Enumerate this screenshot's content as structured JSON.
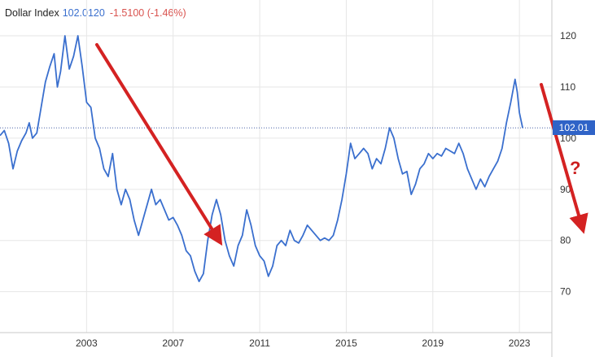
{
  "header": {
    "name": "Dollar Index",
    "last": "102.0120",
    "change": "-1.5100 (-1.46%)"
  },
  "colors": {
    "line": "#3a6fce",
    "arrow": "#d42222",
    "change": "#d9534f",
    "grid": "#e6e6e6"
  },
  "chart_data": {
    "type": "line",
    "title": "",
    "xlabel": "",
    "ylabel": "",
    "x_ticks": [
      "2003",
      "2007",
      "2011",
      "2015",
      "2019",
      "2023"
    ],
    "y_ticks": [
      "70",
      "80",
      "90",
      "100",
      "110",
      "120"
    ],
    "xlim": [
      1999.0,
      2024.5
    ],
    "ylim": [
      62,
      127
    ],
    "grid": true,
    "last_value_label": "102.01",
    "last_value": 102.01,
    "annotation_text": "?",
    "series": [
      {
        "values": [
          [
            1999.0,
            100.5
          ],
          [
            1999.2,
            101.5
          ],
          [
            1999.4,
            99.0
          ],
          [
            1999.6,
            94.0
          ],
          [
            1999.8,
            97.5
          ],
          [
            2000.0,
            99.5
          ],
          [
            2000.2,
            101.0
          ],
          [
            2000.35,
            103.0
          ],
          [
            2000.5,
            100.0
          ],
          [
            2000.7,
            101.0
          ],
          [
            2000.9,
            106.0
          ],
          [
            2001.1,
            111.0
          ],
          [
            2001.3,
            114.0
          ],
          [
            2001.5,
            116.5
          ],
          [
            2001.65,
            110.0
          ],
          [
            2001.8,
            113.0
          ],
          [
            2002.0,
            120.0
          ],
          [
            2002.2,
            113.5
          ],
          [
            2002.4,
            116.0
          ],
          [
            2002.6,
            120.0
          ],
          [
            2002.8,
            114.0
          ],
          [
            2003.0,
            107.0
          ],
          [
            2003.2,
            106.0
          ],
          [
            2003.4,
            100.0
          ],
          [
            2003.6,
            98.0
          ],
          [
            2003.8,
            94.0
          ],
          [
            2004.0,
            92.5
          ],
          [
            2004.2,
            97.0
          ],
          [
            2004.4,
            90.0
          ],
          [
            2004.6,
            87.0
          ],
          [
            2004.8,
            90.0
          ],
          [
            2005.0,
            88.0
          ],
          [
            2005.2,
            84.0
          ],
          [
            2005.4,
            81.0
          ],
          [
            2005.6,
            84.0
          ],
          [
            2005.8,
            87.0
          ],
          [
            2006.0,
            90.0
          ],
          [
            2006.2,
            87.0
          ],
          [
            2006.4,
            88.0
          ],
          [
            2006.6,
            86.0
          ],
          [
            2006.8,
            84.0
          ],
          [
            2007.0,
            84.5
          ],
          [
            2007.2,
            83.0
          ],
          [
            2007.4,
            81.0
          ],
          [
            2007.6,
            78.0
          ],
          [
            2007.8,
            77.0
          ],
          [
            2008.0,
            74.0
          ],
          [
            2008.2,
            72.0
          ],
          [
            2008.4,
            73.5
          ],
          [
            2008.6,
            80.0
          ],
          [
            2008.8,
            85.0
          ],
          [
            2009.0,
            88.0
          ],
          [
            2009.2,
            85.0
          ],
          [
            2009.4,
            80.0
          ],
          [
            2009.6,
            77.0
          ],
          [
            2009.8,
            75.0
          ],
          [
            2010.0,
            79.0
          ],
          [
            2010.2,
            81.0
          ],
          [
            2010.4,
            86.0
          ],
          [
            2010.6,
            83.0
          ],
          [
            2010.8,
            79.0
          ],
          [
            2011.0,
            77.0
          ],
          [
            2011.2,
            76.0
          ],
          [
            2011.4,
            73.0
          ],
          [
            2011.6,
            75.0
          ],
          [
            2011.8,
            79.0
          ],
          [
            2012.0,
            80.0
          ],
          [
            2012.2,
            79.0
          ],
          [
            2012.4,
            82.0
          ],
          [
            2012.6,
            80.0
          ],
          [
            2012.8,
            79.5
          ],
          [
            2013.0,
            81.0
          ],
          [
            2013.2,
            83.0
          ],
          [
            2013.4,
            82.0
          ],
          [
            2013.6,
            81.0
          ],
          [
            2013.8,
            80.0
          ],
          [
            2014.0,
            80.5
          ],
          [
            2014.2,
            80.0
          ],
          [
            2014.4,
            81.0
          ],
          [
            2014.6,
            84.0
          ],
          [
            2014.8,
            88.0
          ],
          [
            2015.0,
            93.0
          ],
          [
            2015.2,
            99.0
          ],
          [
            2015.4,
            96.0
          ],
          [
            2015.6,
            97.0
          ],
          [
            2015.8,
            98.0
          ],
          [
            2016.0,
            97.0
          ],
          [
            2016.2,
            94.0
          ],
          [
            2016.4,
            96.0
          ],
          [
            2016.6,
            95.0
          ],
          [
            2016.8,
            98.0
          ],
          [
            2017.0,
            102.0
          ],
          [
            2017.2,
            100.0
          ],
          [
            2017.4,
            96.0
          ],
          [
            2017.6,
            93.0
          ],
          [
            2017.8,
            93.5
          ],
          [
            2018.0,
            89.0
          ],
          [
            2018.2,
            91.0
          ],
          [
            2018.4,
            94.0
          ],
          [
            2018.6,
            95.0
          ],
          [
            2018.8,
            97.0
          ],
          [
            2019.0,
            96.0
          ],
          [
            2019.2,
            97.0
          ],
          [
            2019.4,
            96.5
          ],
          [
            2019.6,
            98.0
          ],
          [
            2019.8,
            97.5
          ],
          [
            2020.0,
            97.0
          ],
          [
            2020.2,
            99.0
          ],
          [
            2020.4,
            97.0
          ],
          [
            2020.6,
            94.0
          ],
          [
            2020.8,
            92.0
          ],
          [
            2021.0,
            90.0
          ],
          [
            2021.2,
            92.0
          ],
          [
            2021.4,
            90.5
          ],
          [
            2021.6,
            92.5
          ],
          [
            2021.8,
            94.0
          ],
          [
            2022.0,
            95.5
          ],
          [
            2022.2,
            98.0
          ],
          [
            2022.4,
            103.0
          ],
          [
            2022.6,
            107.0
          ],
          [
            2022.8,
            111.5
          ],
          [
            2022.9,
            109.0
          ],
          [
            2023.0,
            105.0
          ],
          [
            2023.15,
            102.0
          ]
        ]
      }
    ]
  }
}
